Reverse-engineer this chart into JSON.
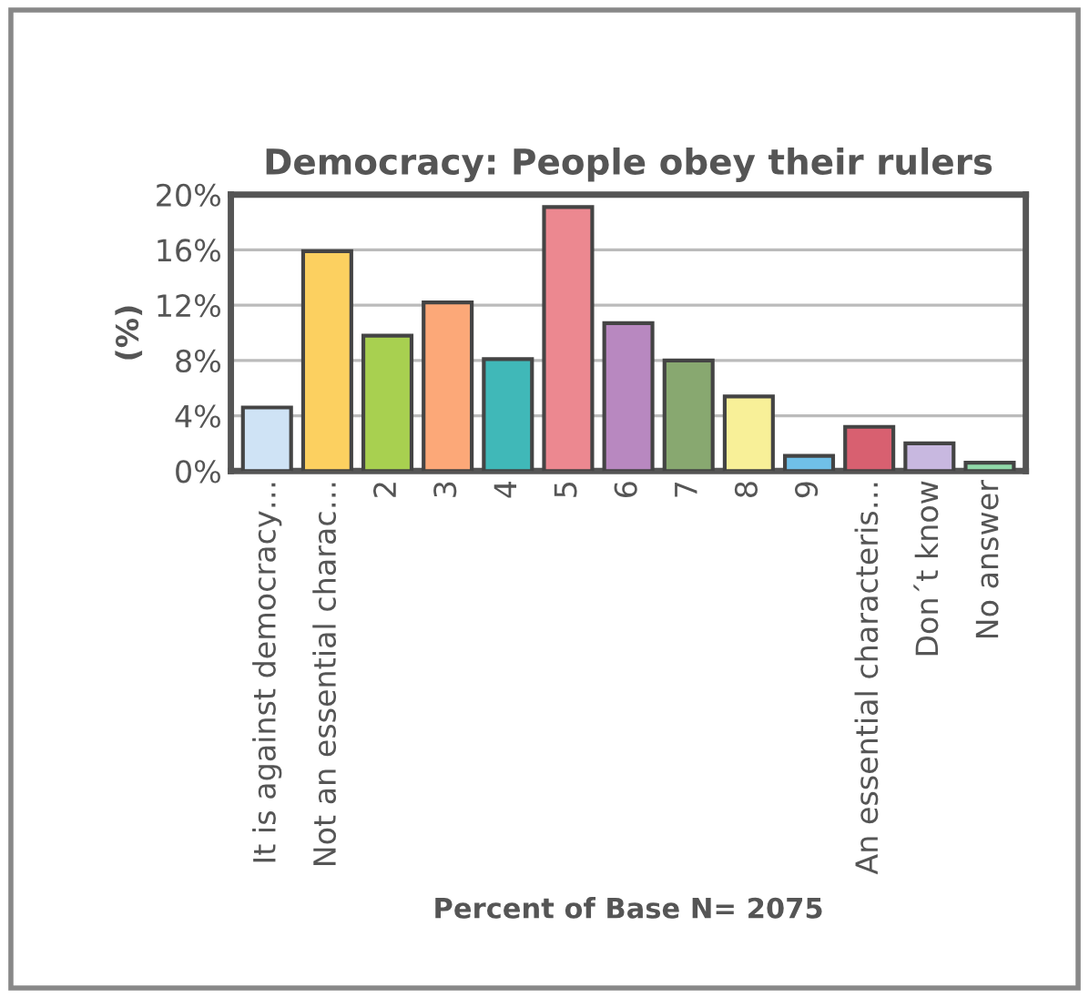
{
  "chart_data": {
    "type": "bar",
    "title": "Democracy: People obey their rulers",
    "xlabel": "Percent of Base N= 2075",
    "ylabel": "(%)",
    "categories": [
      "It is against democracy…",
      "Not an essential charac…",
      "2",
      "3",
      "4",
      "5",
      "6",
      "7",
      "8",
      "9",
      "An essential characteris…",
      "Don´t know",
      "No answer"
    ],
    "values": [
      4.6,
      15.9,
      9.8,
      12.2,
      8.1,
      19.1,
      10.7,
      8.0,
      5.4,
      1.1,
      3.2,
      2.0,
      0.6
    ],
    "colors": [
      "#cfe3f5",
      "#fcd060",
      "#a8d050",
      "#fca878",
      "#40b8b8",
      "#ec8890",
      "#b888c0",
      "#88a870",
      "#f8f098",
      "#70c0e8",
      "#d86070",
      "#c8b8e0",
      "#90d8a8"
    ],
    "ylim": [
      0,
      20
    ],
    "yticks": [
      {
        "value": 0,
        "label": "0%"
      },
      {
        "value": 4,
        "label": "4%"
      },
      {
        "value": 8,
        "label": "8%"
      },
      {
        "value": 12,
        "label": "12%"
      },
      {
        "value": 16,
        "label": "16%"
      },
      {
        "value": 20,
        "label": "20%"
      }
    ],
    "grid": "y",
    "legend": false
  }
}
